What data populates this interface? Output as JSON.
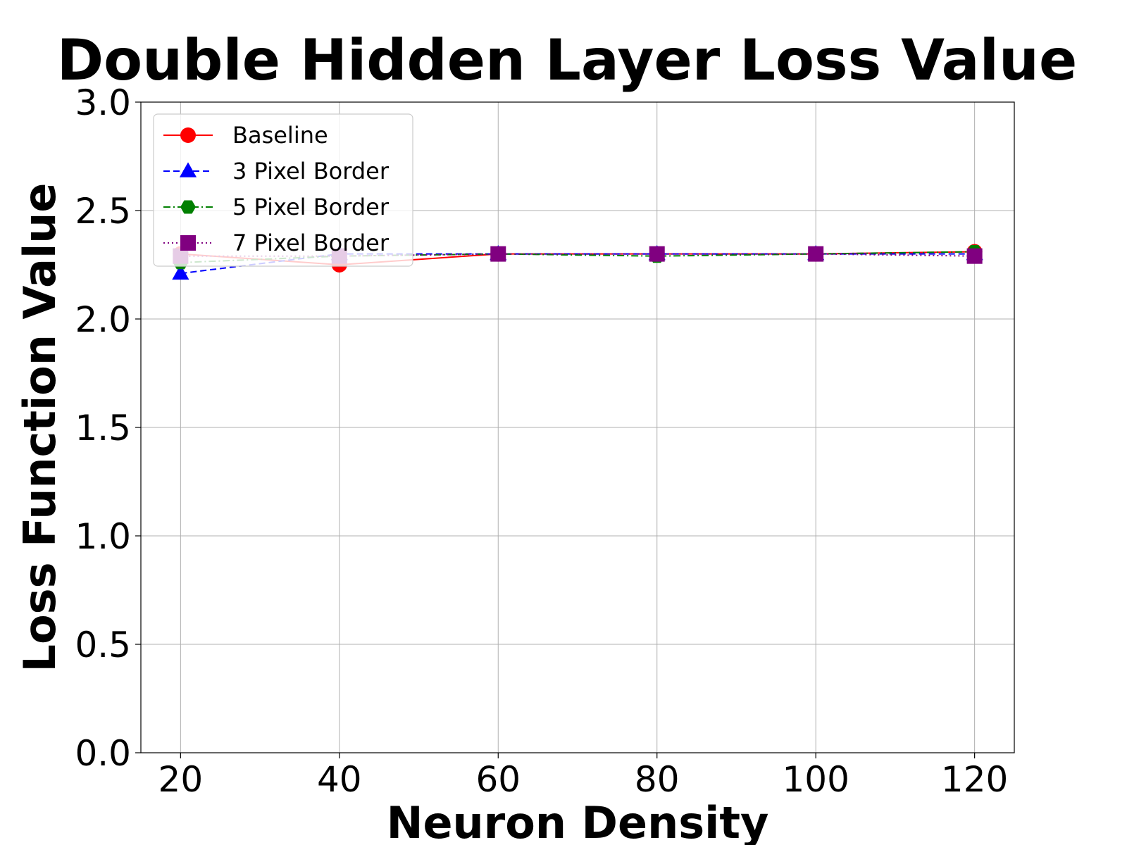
{
  "chart_data": {
    "type": "line",
    "title": "Double Hidden Layer Loss Value",
    "xlabel": "Neuron Density",
    "ylabel": "Loss Function Value",
    "x": [
      20,
      40,
      60,
      80,
      100,
      120
    ],
    "xticks": [
      "20",
      "40",
      "60",
      "80",
      "100",
      "120"
    ],
    "yticks": [
      "0.0",
      "0.5",
      "1.0",
      "1.5",
      "2.0",
      "2.5",
      "3.0"
    ],
    "xlim": [
      15,
      125
    ],
    "ylim": [
      0,
      3
    ],
    "grid": true,
    "legend_position": "top-left",
    "series": [
      {
        "name": "Baseline",
        "values": [
          2.3,
          2.25,
          2.3,
          2.3,
          2.3,
          2.31
        ],
        "color": "#ff0000",
        "dash": "solid",
        "marker": "circle"
      },
      {
        "name": "3 Pixel Border",
        "values": [
          2.21,
          2.3,
          2.3,
          2.3,
          2.3,
          2.3
        ],
        "color": "#0000ff",
        "dash": "dashed",
        "marker": "triangle"
      },
      {
        "name": "5 Pixel Border",
        "values": [
          2.26,
          2.29,
          2.3,
          2.29,
          2.3,
          2.31
        ],
        "color": "#008000",
        "dash": "dashdot",
        "marker": "hexagon"
      },
      {
        "name": "7 Pixel Border",
        "values": [
          2.29,
          2.29,
          2.3,
          2.3,
          2.3,
          2.29
        ],
        "color": "#800080",
        "dash": "dotted",
        "marker": "square"
      }
    ]
  }
}
